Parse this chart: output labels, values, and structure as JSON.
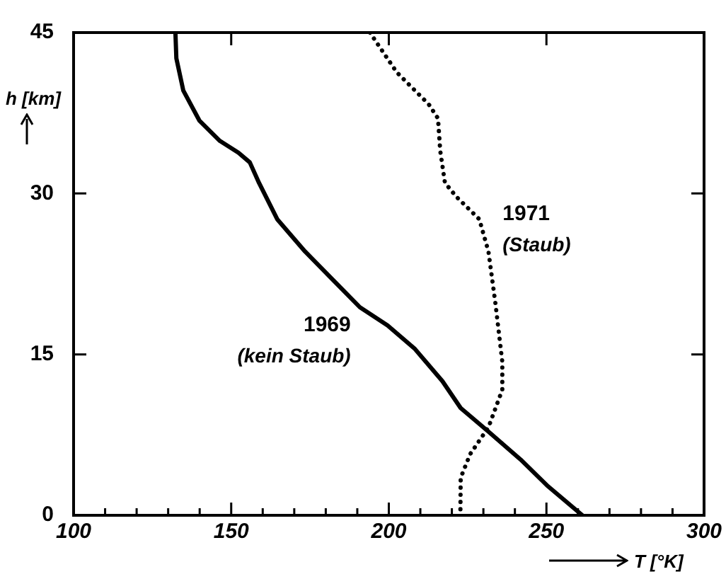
{
  "chart_data": {
    "type": "line",
    "xlabel": "T [°K]",
    "ylabel": "h [km]",
    "xlim": [
      100,
      300
    ],
    "ylim": [
      0,
      45
    ],
    "xticks": [
      100,
      {
        "value": 110,
        "label": null
      },
      {
        "value": 120,
        "label": null
      },
      {
        "value": 130,
        "label": null
      },
      {
        "value": 140,
        "label": null
      },
      150,
      {
        "value": 160,
        "label": null
      },
      {
        "value": 170,
        "label": null
      },
      {
        "value": 180,
        "label": null
      },
      {
        "value": 190,
        "label": null
      },
      200,
      {
        "value": 210,
        "label": null
      },
      {
        "value": 220,
        "label": null
      },
      {
        "value": 230,
        "label": null
      },
      {
        "value": 240,
        "label": null
      },
      250,
      {
        "value": 260,
        "label": null
      },
      {
        "value": 270,
        "label": null
      },
      {
        "value": 280,
        "label": null
      },
      {
        "value": 290,
        "label": null
      },
      300
    ],
    "yticks": [
      0,
      15,
      30,
      45
    ],
    "grid": false,
    "legend": false,
    "marker": "none",
    "series": [
      {
        "name": "1969",
        "color": "#000000",
        "line_style": "solid",
        "x": [
          132.3,
          132.6,
          134.8,
          139.9,
          146.4,
          152.3,
          155.9,
          158.8,
          164.6,
          173.4,
          182.1,
          190.8,
          199.6,
          208.3,
          217.0,
          222.8,
          231.6,
          241.8,
          250.5,
          261.4
        ],
        "values": [
          45,
          42.6,
          39.6,
          36.8,
          34.9,
          33.8,
          32.9,
          31.0,
          27.6,
          24.6,
          22.0,
          19.4,
          17.7,
          15.5,
          12.5,
          10.0,
          7.8,
          5.2,
          2.7,
          0
        ]
      },
      {
        "name": "1971",
        "color": "#000000",
        "line_style": "dotted",
        "x": [
          194.0,
          202.5,
          212.7,
          215.6,
          216.3,
          217.8,
          221.4,
          228.7,
          231.6,
          233.8,
          236.0,
          236.0,
          231.6,
          225.8,
          222.8,
          222.7
        ],
        "values": [
          45,
          41.3,
          38.3,
          37.0,
          34.0,
          31.0,
          29.7,
          27.6,
          24.6,
          19.8,
          14.3,
          11.7,
          8.2,
          5.7,
          3.5,
          0
        ]
      }
    ],
    "annotations": [
      "(kein Staub)",
      "(Staub)"
    ]
  }
}
